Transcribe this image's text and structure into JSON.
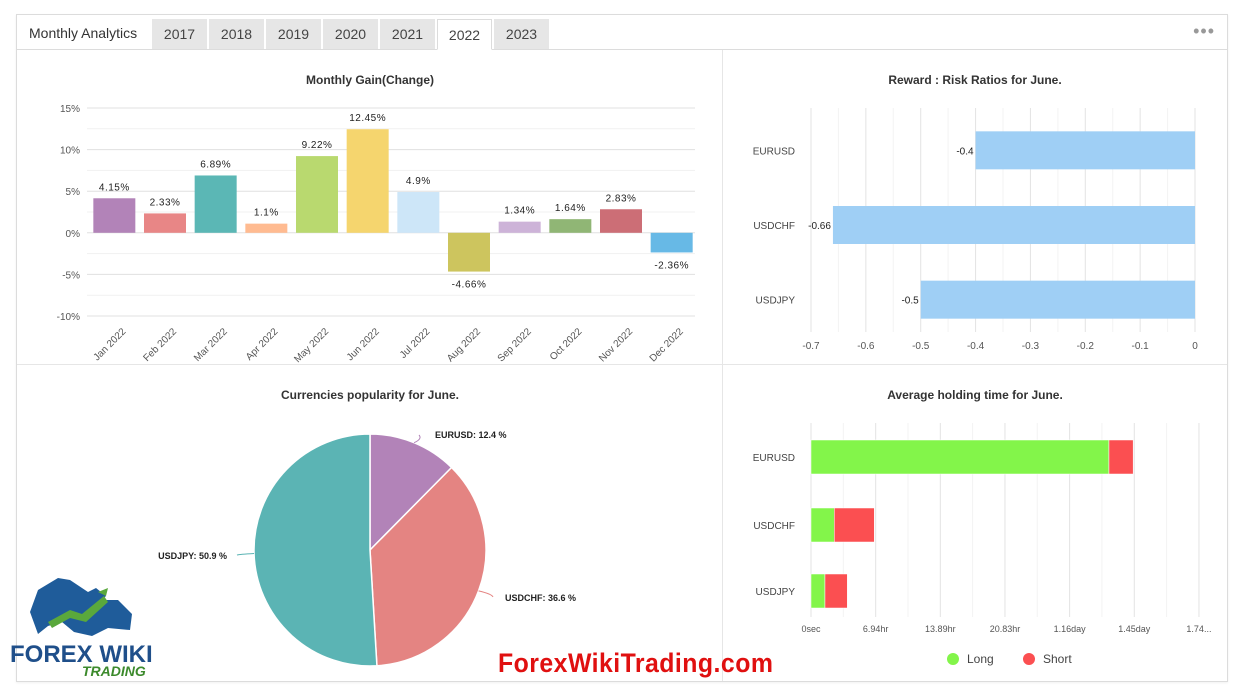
{
  "header": {
    "title": "Monthly Analytics",
    "tabs": [
      {
        "label": "2017",
        "active": false
      },
      {
        "label": "2018",
        "active": false
      },
      {
        "label": "2019",
        "active": false
      },
      {
        "label": "2020",
        "active": false
      },
      {
        "label": "2021",
        "active": false
      },
      {
        "label": "2022",
        "active": true
      },
      {
        "label": "2023",
        "active": false
      }
    ],
    "menu_icon": "more-dots-icon"
  },
  "chart_data": [
    {
      "type": "bar",
      "title": "Monthly Gain(Change)",
      "categories": [
        "Jan 2022",
        "Feb 2022",
        "Mar 2022",
        "Apr 2022",
        "May 2022",
        "Jun 2022",
        "Jul 2022",
        "Aug 2022",
        "Sep 2022",
        "Oct 2022",
        "Nov 2022",
        "Dec 2022"
      ],
      "values": [
        4.15,
        2.33,
        6.89,
        1.1,
        9.22,
        12.45,
        4.9,
        -4.66,
        1.34,
        1.64,
        2.83,
        -2.36
      ],
      "data_labels": [
        "4.15%",
        "2.33%",
        "6.89%",
        "1.1%",
        "9.22%",
        "12.45%",
        "4.9%",
        "-4.66%",
        "1.34%",
        "1.64%",
        "2.83%",
        "-2.36%"
      ],
      "colors": [
        "#b283b8",
        "#e88686",
        "#5bb7b5",
        "#ffbb91",
        "#b9d96f",
        "#f5d56e",
        "#cde6f8",
        "#cdc55e",
        "#cdb3d8",
        "#90b675",
        "#cc6e76",
        "#67b9e6"
      ],
      "yticks": [
        "15%",
        "10%",
        "5%",
        "0%",
        "-5%",
        "-10%"
      ],
      "ylim": [
        -10,
        15
      ],
      "grid": true
    },
    {
      "type": "bar",
      "orientation": "horizontal",
      "title": "Reward : Risk Ratios for June.",
      "categories": [
        "EURUSD",
        "USDCHF",
        "USDJPY"
      ],
      "values": [
        -0.4,
        -0.66,
        -0.5
      ],
      "data_labels": [
        "-0.4",
        "-0.66",
        "-0.5"
      ],
      "color": "#9fcff5",
      "xticks": [
        "-0.7",
        "-0.6",
        "-0.5",
        "-0.4",
        "-0.3",
        "-0.2",
        "-0.1",
        "0"
      ],
      "xlim": [
        -0.7,
        0
      ],
      "grid": true
    },
    {
      "type": "pie",
      "title": "Currencies popularity for June.",
      "slices": [
        {
          "name": "EURUSD",
          "value": 12.4,
          "label": "EURUSD: 12.4 %",
          "color": "#b283b8"
        },
        {
          "name": "USDCHF",
          "value": 36.6,
          "label": "USDCHF: 36.6 %",
          "color": "#e48482"
        },
        {
          "name": "USDJPY",
          "value": 50.9,
          "label": "USDJPY: 50.9 %",
          "color": "#5bb4b4"
        }
      ]
    },
    {
      "type": "bar",
      "orientation": "horizontal",
      "stacked": true,
      "title": "Average holding time for June.",
      "categories": [
        "EURUSD",
        "USDCHF",
        "USDJPY"
      ],
      "xticks": [
        "0sec",
        "6.94hr",
        "13.89hr",
        "20.83hr",
        "1.16day",
        "1.45day",
        "1.74..."
      ],
      "xlim_hours": [
        0,
        41.67
      ],
      "series": [
        {
          "name": "Long",
          "color": "#83f54a",
          "values_hours": [
            32.0,
            2.5,
            1.5
          ]
        },
        {
          "name": "Short",
          "color": "#fb4f51",
          "values_hours": [
            2.6,
            4.3,
            2.4
          ]
        }
      ],
      "legend_position": "bottom",
      "grid": true
    }
  ],
  "logo": {
    "brand": "FOREX WIKI",
    "sub": "TRADING"
  },
  "watermark": "ForexWikiTrading.com"
}
